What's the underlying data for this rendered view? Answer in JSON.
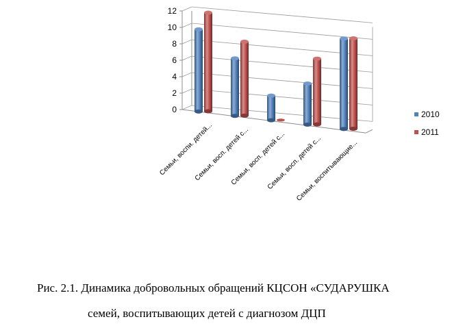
{
  "chart_data": {
    "type": "bar",
    "categories": [
      "Семьи, воспи. детей...",
      "Семьи, восп. детей  с...",
      "Семьи, восп. детей с...",
      "Семьи, восп. детей с...",
      "Семьи, воспитывающие..."
    ],
    "series": [
      {
        "name": "2010",
        "values": [
          10,
          7,
          3,
          5,
          11
        ],
        "color": "#4f81bd"
      },
      {
        "name": "2011",
        "values": [
          12,
          9,
          0,
          8,
          11
        ],
        "color": "#c0504d"
      }
    ],
    "yticks": [
      0,
      2,
      4,
      6,
      8,
      10,
      12
    ],
    "ylim": [
      0,
      12
    ],
    "grid": true,
    "legend_position": "right",
    "three_d": true
  },
  "caption": {
    "line1": "Рис. 2.1. Динамика добровольных обращений КЦСОН «СУДАРУШКА",
    "line2": "семей, воспитывающих детей с диагнозом ДЦП"
  }
}
